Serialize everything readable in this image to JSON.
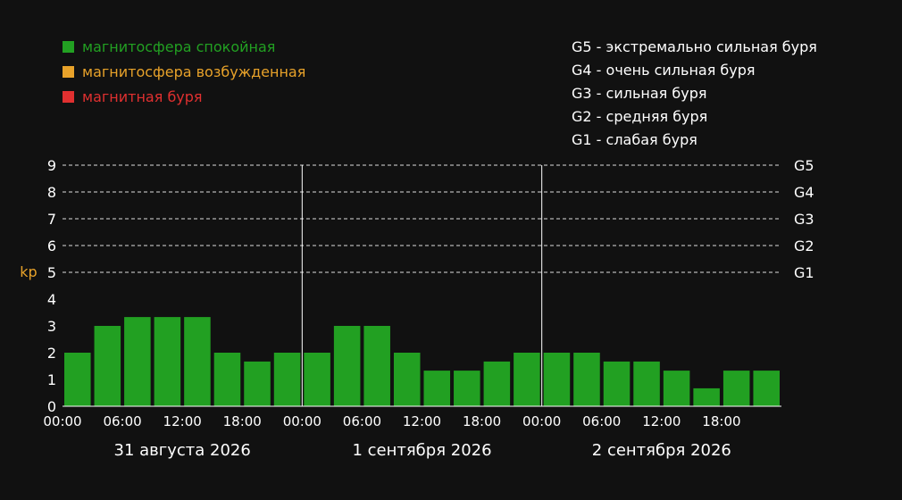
{
  "colors": {
    "background": "#111111",
    "quiet": "#22a022",
    "excited": "#e8a22a",
    "storm": "#e03030",
    "text": "#ffffff",
    "ylabel": "#e8a22a",
    "grid": "#dddddd"
  },
  "legend": {
    "status": [
      {
        "label": "магнитосфера спокойная",
        "color": "#22a022"
      },
      {
        "label": "магнитосфера возбужденная",
        "color": "#e8a22a"
      },
      {
        "label": "магнитная буря",
        "color": "#e03030"
      }
    ],
    "storm_levels": [
      {
        "code": "G5",
        "text": "экстремально сильная буря"
      },
      {
        "code": "G4",
        "text": "очень сильная буря"
      },
      {
        "code": "G3",
        "text": "сильная буря"
      },
      {
        "code": "G2",
        "text": "средняя буря"
      },
      {
        "code": "G1",
        "text": "слабая буря"
      }
    ]
  },
  "chart_data": {
    "type": "bar",
    "title": "",
    "xlabel": "",
    "ylabel": "kp",
    "ylim": [
      0,
      9
    ],
    "yticks": [
      0,
      1,
      2,
      3,
      4,
      5,
      6,
      7,
      8,
      9
    ],
    "days": [
      "31 августа 2026",
      "1 сентября 2026",
      "2 сентября 2026"
    ],
    "xtick_labels": [
      "00:00",
      "06:00",
      "12:00",
      "18:00"
    ],
    "bars_per_day": 8,
    "values": [
      2,
      3,
      3.33,
      3.33,
      3.33,
      2,
      1.67,
      2,
      2,
      3,
      3,
      2,
      1.33,
      1.33,
      1.67,
      2,
      2,
      2,
      1.67,
      1.67,
      1.33,
      0.67,
      1.33,
      1.33
    ],
    "bar_colors": [
      "#22a022",
      "#22a022",
      "#22a022",
      "#22a022",
      "#22a022",
      "#22a022",
      "#22a022",
      "#22a022",
      "#22a022",
      "#22a022",
      "#22a022",
      "#22a022",
      "#22a022",
      "#22a022",
      "#22a022",
      "#22a022",
      "#22a022",
      "#22a022",
      "#22a022",
      "#22a022",
      "#22a022",
      "#22a022",
      "#22a022",
      "#22a022"
    ],
    "storm_gridlines": [
      {
        "value": 5,
        "label": "G1"
      },
      {
        "value": 6,
        "label": "G2"
      },
      {
        "value": 7,
        "label": "G3"
      },
      {
        "value": 8,
        "label": "G4"
      },
      {
        "value": 9,
        "label": "G5"
      }
    ],
    "grid": "dashed at storm levels"
  }
}
